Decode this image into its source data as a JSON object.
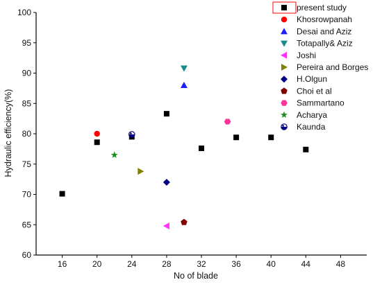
{
  "chart_data": {
    "type": "scatter",
    "title": "",
    "xlabel": "No of blade",
    "ylabel": "Hydraulic efficiency(%)",
    "xlim": [
      13,
      51
    ],
    "ylim": [
      60,
      100
    ],
    "xticks": [
      "16",
      "20",
      "24",
      "28",
      "32",
      "36",
      "40",
      "44",
      "48"
    ],
    "yticks": [
      "60",
      "65",
      "70",
      "75",
      "80",
      "85",
      "90",
      "95",
      "100"
    ],
    "legend_position": "top-right",
    "grid": false,
    "series": [
      {
        "name": "present study",
        "marker": "square",
        "color": "#000000",
        "points": [
          [
            16,
            70.1
          ],
          [
            20,
            78.6
          ],
          [
            24,
            79.5
          ],
          [
            28,
            83.3
          ],
          [
            32,
            77.6
          ],
          [
            36,
            79.4
          ],
          [
            40,
            79.4
          ],
          [
            44,
            77.4
          ]
        ]
      },
      {
        "name": "Khosrowpanah",
        "marker": "circle",
        "color": "#ff0000",
        "points": [
          [
            20,
            80.0
          ]
        ]
      },
      {
        "name": "Desai and Aziz",
        "marker": "triangle-up",
        "color": "#1e1eff",
        "points": [
          [
            30,
            88.0
          ]
        ]
      },
      {
        "name": "Totapally& Aziz",
        "marker": "triangle-down",
        "color": "#1a8a8a",
        "points": [
          [
            30,
            90.8
          ]
        ]
      },
      {
        "name": "Joshi",
        "marker": "triangle-left",
        "color": "#ff33ff",
        "points": [
          [
            28,
            64.8
          ]
        ]
      },
      {
        "name": "Pereira and Borges",
        "marker": "triangle-right",
        "color": "#808000",
        "points": [
          [
            25,
            73.8
          ]
        ]
      },
      {
        "name": "H.Olgun",
        "marker": "diamond",
        "color": "#000080",
        "points": [
          [
            28,
            72.0
          ]
        ]
      },
      {
        "name": "Choi et al",
        "marker": "pentagon",
        "color": "#800000",
        "points": [
          [
            30,
            65.4
          ]
        ]
      },
      {
        "name": "Sammartano",
        "marker": "hexagon",
        "color": "#ff3399",
        "points": [
          [
            35,
            82.0
          ]
        ]
      },
      {
        "name": "Acharya",
        "marker": "star",
        "color": "#228b22",
        "points": [
          [
            22,
            76.5
          ]
        ]
      },
      {
        "name": "Kaunda",
        "marker": "half-circle",
        "color": "#000080",
        "points": [
          [
            24,
            79.9
          ]
        ]
      }
    ]
  }
}
